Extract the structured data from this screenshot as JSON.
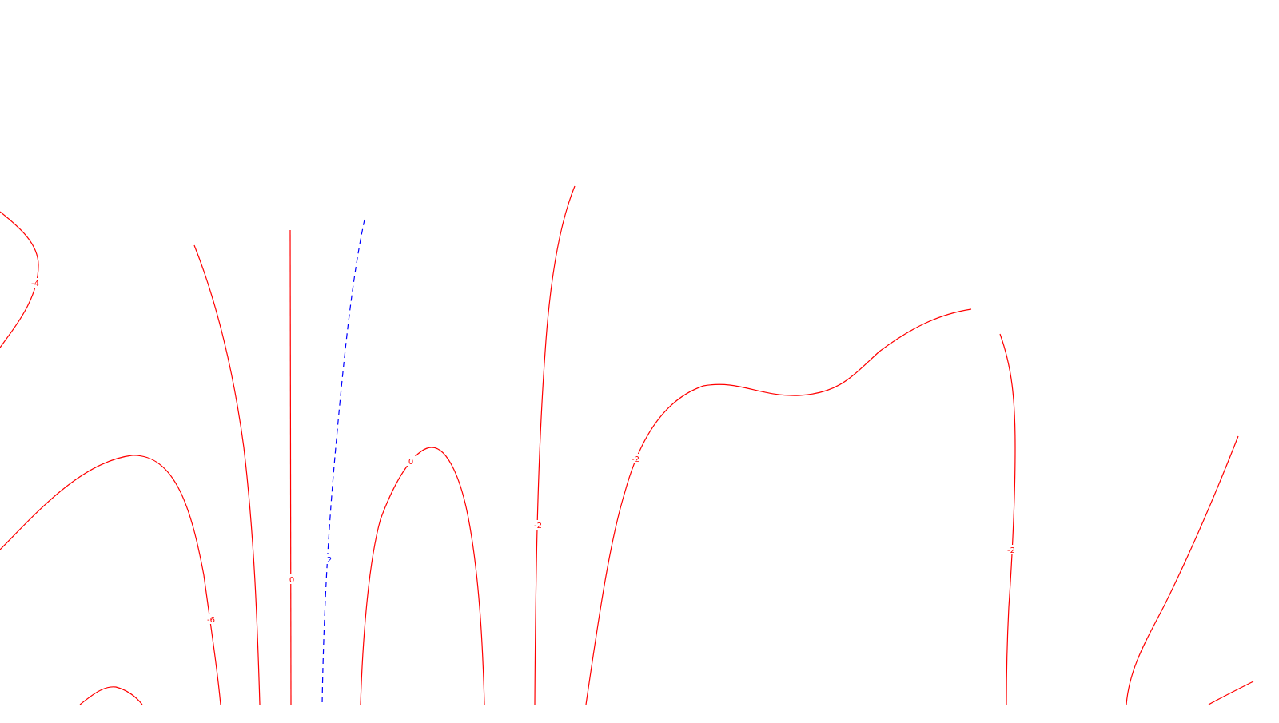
{
  "chart_data": {
    "type": "contour",
    "title": "",
    "xlabel": "",
    "ylabel": "",
    "grid": false,
    "legend": false,
    "colors": {
      "negative": "#ff0000",
      "positive": "#0000ff"
    },
    "line_styles": {
      "negative": "solid",
      "positive": "dashed"
    },
    "contours": [
      {
        "level": -4,
        "label": "-4",
        "style": "negative"
      },
      {
        "level": -6,
        "label": "-6",
        "style": "negative"
      },
      {
        "level": -6,
        "label": "",
        "style": "negative"
      },
      {
        "level": -2,
        "label": "-2",
        "style": "negative"
      },
      {
        "level": 0,
        "label": "0",
        "style": "negative"
      },
      {
        "level": 2,
        "label": "2",
        "style": "positive"
      },
      {
        "level": 0,
        "label": "0",
        "style": "negative"
      },
      {
        "level": -2,
        "label": "-2",
        "style": "negative"
      },
      {
        "level": -2,
        "label": "-2",
        "style": "negative"
      },
      {
        "level": -2,
        "label": "-2",
        "style": "negative"
      },
      {
        "level": -2,
        "label": "",
        "style": "negative"
      },
      {
        "level": -4,
        "label": "",
        "style": "negative"
      },
      {
        "level": -2,
        "label": "",
        "style": "negative"
      }
    ]
  }
}
